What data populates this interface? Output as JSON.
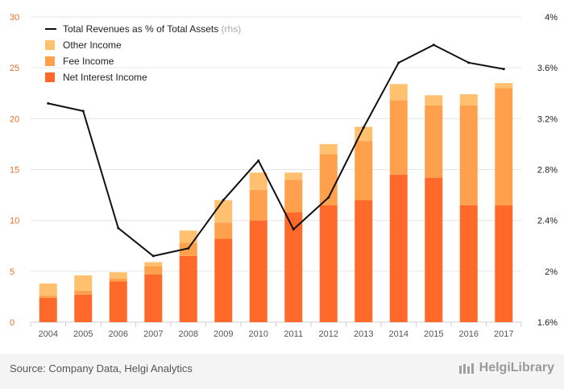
{
  "chart_data": {
    "type": "bar",
    "stacked": true,
    "categories": [
      "2004",
      "2005",
      "2006",
      "2007",
      "2008",
      "2009",
      "2010",
      "2011",
      "2012",
      "2013",
      "2014",
      "2015",
      "2016",
      "2017"
    ],
    "series": [
      {
        "name": "Net Interest Income",
        "color": "#ff6a2a",
        "values": [
          2.4,
          2.7,
          4.0,
          4.7,
          6.5,
          8.2,
          10.0,
          10.8,
          11.5,
          12.0,
          14.5,
          14.2,
          11.5,
          11.5
        ]
      },
      {
        "name": "Fee Income",
        "color": "#ffa04c",
        "values": [
          0.2,
          0.4,
          0.3,
          0.8,
          1.3,
          1.6,
          3.0,
          3.2,
          5.0,
          5.8,
          7.3,
          7.1,
          9.8,
          11.5
        ]
      },
      {
        "name": "Other Income",
        "color": "#ffc06f",
        "values": [
          1.2,
          1.5,
          0.6,
          0.4,
          1.2,
          2.2,
          1.7,
          0.7,
          1.0,
          1.4,
          1.6,
          1.0,
          1.1,
          0.5
        ]
      }
    ],
    "line_series": {
      "name": "Total Revenues as % of Total Assets",
      "suffix": "(rhs)",
      "color": "#111111",
      "values": [
        3.32,
        3.26,
        2.34,
        2.12,
        2.18,
        2.56,
        2.87,
        2.33,
        2.58,
        3.13,
        3.64,
        3.78,
        3.64,
        3.59
      ]
    },
    "ylim": [
      0,
      30
    ],
    "y_ticks": [
      0,
      5,
      10,
      15,
      20,
      25,
      30
    ],
    "y2lim": [
      1.6,
      4.0
    ],
    "y2_ticks": [
      1.6,
      2.0,
      2.4,
      2.8,
      3.2,
      3.6,
      4.0
    ],
    "y2_tick_labels": [
      "1.6%",
      "2%",
      "2.4%",
      "2.8%",
      "3.2%",
      "3.6%",
      "4%"
    ],
    "legend_position": "top-left",
    "legend_order": [
      "line",
      "Other Income",
      "Fee Income",
      "Net Interest Income"
    ],
    "grid": true,
    "left_tick_color": "#e8702a"
  },
  "footer": {
    "source": "Source: Company Data, Helgi Analytics",
    "brand": "HelgiLibrary"
  }
}
